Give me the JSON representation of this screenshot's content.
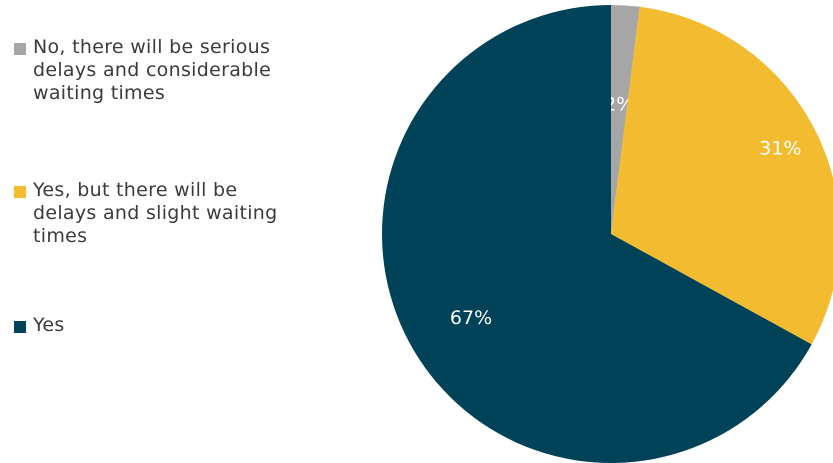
{
  "chart_data": {
    "type": "pie",
    "slices": [
      {
        "label": "No, there will be serious delays and considerable waiting times",
        "value": 2,
        "data_label": "2%",
        "color": "#a6a6a6"
      },
      {
        "label": "Yes, but there will be delays and slight waiting times",
        "value": 31,
        "data_label": "31%",
        "color": "#f2bb30"
      },
      {
        "label": "Yes",
        "value": 67,
        "data_label": "67%",
        "color": "#004257"
      }
    ],
    "legend_position": "left"
  }
}
